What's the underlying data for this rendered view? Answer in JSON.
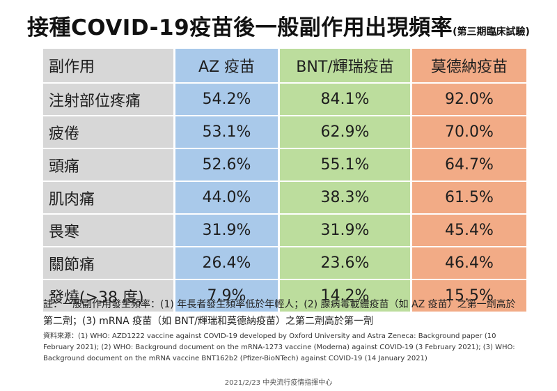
{
  "title": "接種COVID-19疫苗後一般副作用出現頻率",
  "subtitle": "(第三期臨床試驗)",
  "table": {
    "headers": [
      "副作用",
      "AZ 疫苗",
      "BNT/輝瑞疫苗",
      "莫德納疫苗"
    ],
    "rows": [
      [
        "注射部位疼痛",
        "54.2%",
        "84.1%",
        "92.0%"
      ],
      [
        "疲倦",
        "53.1%",
        "62.9%",
        "70.0%"
      ],
      [
        "頭痛",
        "52.6%",
        "55.1%",
        "64.7%"
      ],
      [
        "肌肉痛",
        "44.0%",
        "38.3%",
        "61.5%"
      ],
      [
        "畏寒",
        "31.9%",
        "31.9%",
        "45.4%"
      ],
      [
        "關節痛",
        "26.4%",
        "23.6%",
        "46.4%"
      ],
      [
        "發燒(>38 度)",
        "7.9%",
        "14.2%",
        "15.5%"
      ]
    ],
    "colors": {
      "label_column": "#d7d7d7",
      "az": "#a9c9ea",
      "bnt": "#bcdd9d",
      "moderna": "#f2ab86"
    }
  },
  "note": "註：一般副作用發生頻率：(1) 年長者發生頻率低於年輕人；(2) 腺病毒載體疫苗（如 AZ 疫苗）之第一劑高於第二劑；(3) mRNA 疫苗（如 BNT/輝瑞和莫德納疫苗）之第二劑高於第一劑",
  "sources": "資料來源：(1) WHO: AZD1222 vaccine against COVID-19 developed by Oxford University and Astra Zeneca: Background paper (10 February 2021); (2) WHO: Background document on the mRNA-1273 vaccine (Moderna) against COVID-19 (3 February 2021); (3) WHO: Background document on the mRNA vaccine BNT162b2 (Pfizer-BioNTech) against COVID-19 (14 January 2021)",
  "footer": "2021/2/23 中央流行疫情指揮中心"
}
